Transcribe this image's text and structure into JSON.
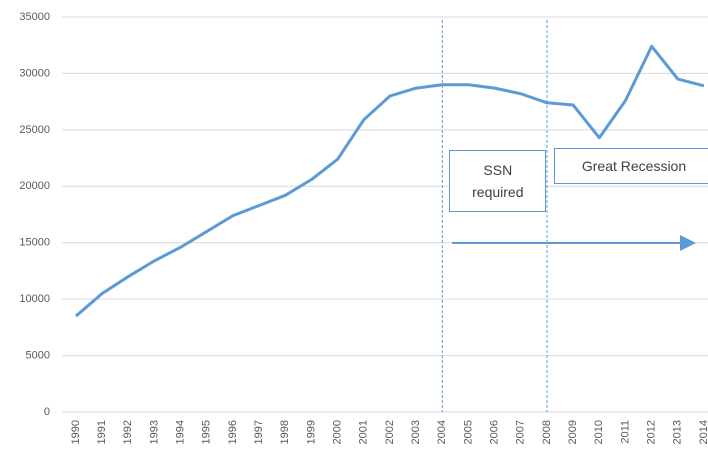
{
  "chart_data": {
    "type": "line",
    "categories": [
      "1990",
      "1991",
      "1992",
      "1993",
      "1994",
      "1995",
      "1996",
      "1997",
      "1998",
      "1999",
      "2000",
      "2001",
      "2002",
      "2003",
      "2004",
      "2005",
      "2006",
      "2007",
      "2008",
      "2009",
      "2010",
      "2011",
      "2012",
      "2013",
      "2014"
    ],
    "values": [
      8500,
      10500,
      12000,
      13400,
      14600,
      16000,
      17400,
      18300,
      19200,
      20600,
      22400,
      25900,
      28000,
      28700,
      29000,
      29000,
      28700,
      28200,
      27400,
      27200,
      24300,
      27600,
      32400,
      29500,
      28900
    ],
    "color": "#5b9bd5",
    "ylim": [
      0,
      35000
    ],
    "yticks": [
      0,
      5000,
      10000,
      15000,
      20000,
      25000,
      30000,
      35000
    ],
    "grid": true,
    "annotations": [
      {
        "text": "SSN required",
        "at": "2004"
      },
      {
        "text": "Great Recession",
        "at": "2008"
      }
    ]
  }
}
